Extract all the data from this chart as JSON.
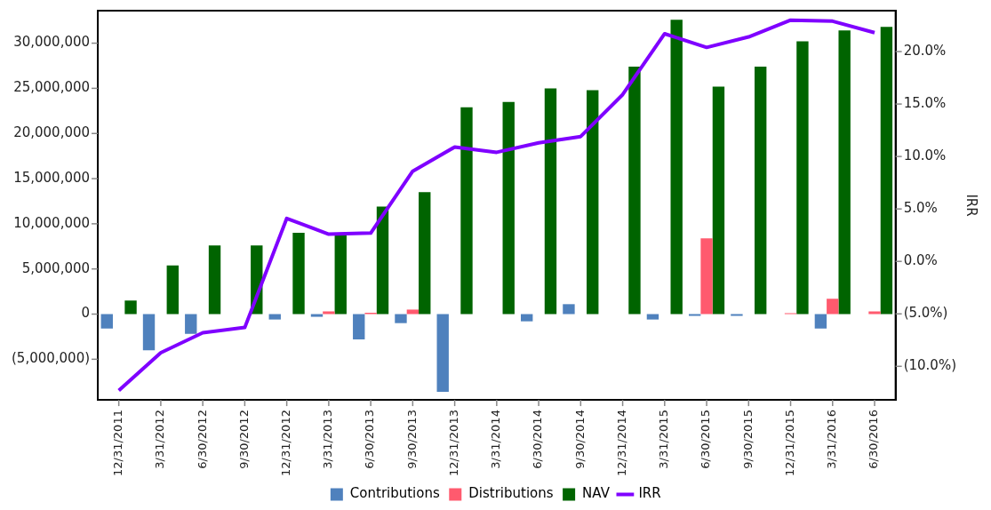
{
  "chart_data": {
    "type": "bar",
    "ylabel": null,
    "y2label": "IRR",
    "categories": [
      "12/31/2011",
      "3/31/2012",
      "6/30/2012",
      "9/30/2012",
      "12/31/2012",
      "3/31/2013",
      "6/30/2013",
      "9/30/2013",
      "12/31/2013",
      "3/31/2014",
      "6/30/2014",
      "9/30/2014",
      "12/31/2014",
      "3/31/2015",
      "6/30/2015",
      "9/30/2015",
      "12/31/2015",
      "3/31/2016",
      "6/30/2016"
    ],
    "series": [
      {
        "name": "Contributions",
        "color": "#4f81bd",
        "values": [
          -1600000,
          -4000000,
          -2200000,
          null,
          -600000,
          -300000,
          -2800000,
          -1000000,
          -8600000,
          null,
          -800000,
          1100000,
          null,
          -600000,
          -200000,
          -200000,
          null,
          -1600000,
          null
        ]
      },
      {
        "name": "Distributions",
        "color": "#ff5a6e",
        "values": [
          null,
          null,
          null,
          null,
          null,
          300000,
          150000,
          500000,
          null,
          null,
          null,
          null,
          null,
          null,
          8400000,
          null,
          100000,
          1700000,
          300000
        ]
      },
      {
        "name": "NAV",
        "color": "#006400",
        "values": [
          1500000,
          5400000,
          7600000,
          7600000,
          9000000,
          8800000,
          11900000,
          13500000,
          22900000,
          23500000,
          25000000,
          24800000,
          27400000,
          32600000,
          25200000,
          27400000,
          30200000,
          31400000,
          31800000
        ]
      },
      {
        "name": "IRR",
        "type": "line",
        "axis": "y2",
        "color": "#7f00ff",
        "values": [
          -12.3,
          -8.7,
          -6.8,
          -6.3,
          4.1,
          2.6,
          2.7,
          8.6,
          10.9,
          10.4,
          11.3,
          11.9,
          15.9,
          21.7,
          20.4,
          21.4,
          23.0,
          22.9,
          21.8
        ]
      }
    ],
    "ylim": [
      -9500000,
      33600000
    ],
    "yticks": [
      {
        "value": -5000000,
        "label": "(5,000,000)"
      },
      {
        "value": 0,
        "label": "0"
      },
      {
        "value": 5000000,
        "label": "5,000,000"
      },
      {
        "value": 10000000,
        "label": "10,000,000"
      },
      {
        "value": 15000000,
        "label": "15,000,000"
      },
      {
        "value": 20000000,
        "label": "20,000,000"
      },
      {
        "value": 25000000,
        "label": "25,000,000"
      },
      {
        "value": 30000000,
        "label": "30,000,000"
      }
    ],
    "y2lim": [
      -13.2,
      23.9
    ],
    "y2ticks": [
      {
        "value": -10,
        "label": "(10.0%)"
      },
      {
        "value": -5,
        "label": "(5.0%)"
      },
      {
        "value": 0,
        "label": "0.0%"
      },
      {
        "value": 5,
        "label": "5.0%"
      },
      {
        "value": 10,
        "label": "10.0%"
      },
      {
        "value": 15,
        "label": "15.0%"
      },
      {
        "value": 20,
        "label": "20.0%"
      }
    ],
    "grid": false,
    "legend": "bottom",
    "marker": "none",
    "line_style": "solid"
  }
}
